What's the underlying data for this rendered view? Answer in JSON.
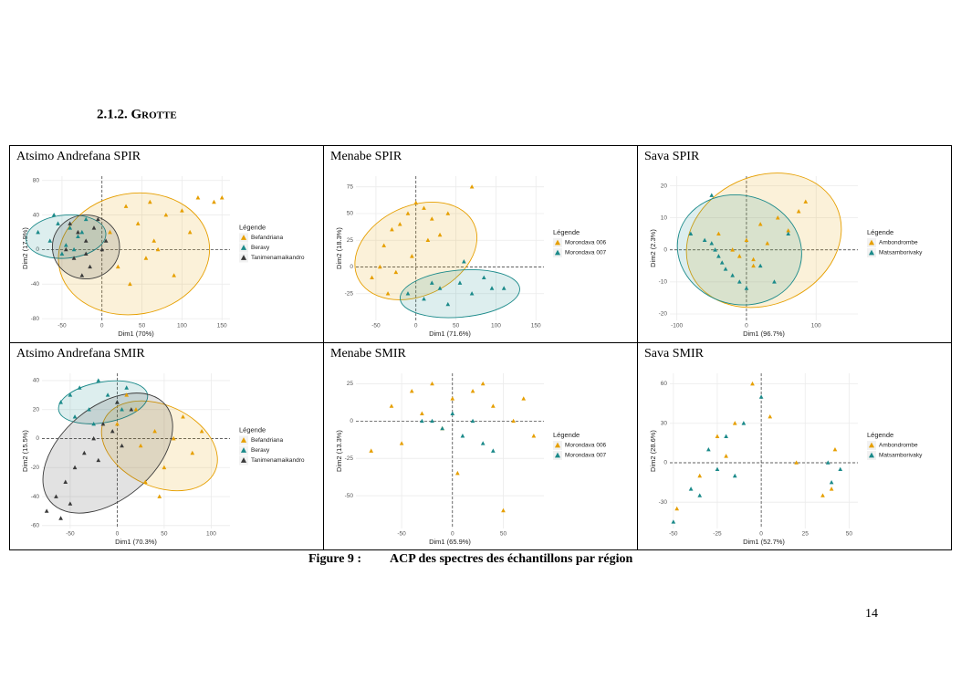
{
  "heading": "2.1.2. Grotte",
  "caption": {
    "label": "Figure 9 :",
    "text": "ACP des spectres des échantillons par région"
  },
  "page_number": "14",
  "chart_data": [
    {
      "type": "scatter",
      "title": "Atsimo Andrefana SPIR",
      "x_label": "Dim1 (70%)",
      "y_label": "Dim2 (17.9%)",
      "legend_title": "Légende",
      "grid": true,
      "xlim": [
        -75,
        160
      ],
      "xticks": [
        -50,
        0,
        50,
        100,
        150
      ],
      "ylim": [
        -82,
        85
      ],
      "yticks": [
        -80,
        -40,
        0,
        40,
        80
      ],
      "series": [
        {
          "name": "Befandriana",
          "color": "#e69f00",
          "x": [
            10,
            30,
            45,
            60,
            80,
            100,
            120,
            140,
            150,
            55,
            90,
            35,
            70,
            20,
            110,
            65
          ],
          "y": [
            20,
            50,
            30,
            55,
            40,
            45,
            60,
            55,
            60,
            -10,
            -30,
            -40,
            0,
            -20,
            20,
            10
          ],
          "ellipse": {
            "cx": 40,
            "cy": -5,
            "rx": 95,
            "ry": 70,
            "angle": -10
          }
        },
        {
          "name": "Beravy",
          "color": "#1b8a8a",
          "x": [
            -80,
            -65,
            -55,
            -45,
            -40,
            -30,
            -20,
            -50,
            -60,
            -35,
            -25
          ],
          "y": [
            20,
            10,
            30,
            5,
            25,
            15,
            35,
            -5,
            40,
            0,
            20
          ],
          "ellipse": {
            "cx": -45,
            "cy": 15,
            "rx": 50,
            "ry": 25,
            "angle": -5
          }
        },
        {
          "name": "Tanimenamaikandro",
          "color": "#3a3a3a",
          "x": [
            -40,
            -30,
            -20,
            -10,
            0,
            -35,
            -15,
            -5,
            -25,
            -45,
            5,
            -20
          ],
          "y": [
            30,
            20,
            10,
            25,
            0,
            -10,
            -20,
            35,
            -30,
            0,
            10,
            -5
          ],
          "ellipse": {
            "cx": -20,
            "cy": 3,
            "rx": 42,
            "ry": 37,
            "angle": 0
          }
        }
      ]
    },
    {
      "type": "scatter",
      "title": "Menabe SPIR",
      "x_label": "Dim1 (71.6%)",
      "y_label": "Dim2 (18.3%)",
      "legend_title": "Légende",
      "grid": true,
      "xlim": [
        -75,
        160
      ],
      "xticks": [
        -50,
        0,
        50,
        100,
        150
      ],
      "ylim": [
        -50,
        85
      ],
      "yticks": [
        -25,
        0,
        25,
        50,
        75
      ],
      "series": [
        {
          "name": "Morondava 006",
          "color": "#e69f00",
          "x": [
            -55,
            -40,
            -30,
            -20,
            -10,
            0,
            10,
            20,
            30,
            -45,
            -25,
            -5,
            15,
            40,
            70,
            -35
          ],
          "y": [
            -10,
            20,
            35,
            40,
            50,
            60,
            55,
            45,
            30,
            0,
            -5,
            10,
            25,
            50,
            75,
            -25
          ],
          "ellipse": {
            "cx": 0,
            "cy": 15,
            "rx": 80,
            "ry": 42,
            "angle": -25
          }
        },
        {
          "name": "Morondava 007",
          "color": "#1b8a8a",
          "x": [
            -10,
            10,
            30,
            40,
            55,
            70,
            85,
            95,
            110,
            60,
            20
          ],
          "y": [
            -25,
            -30,
            -20,
            -35,
            -15,
            -25,
            -10,
            -20,
            -20,
            5,
            -15
          ],
          "ellipse": {
            "cx": 55,
            "cy": -25,
            "rx": 75,
            "ry": 22,
            "angle": -5
          }
        }
      ]
    },
    {
      "type": "scatter",
      "title": "Sava SPIR",
      "x_label": "Dim1 (96.7%)",
      "y_label": "Dim2 (2.3%)",
      "legend_title": "Légende",
      "grid": true,
      "xlim": [
        -110,
        160
      ],
      "xticks": [
        -100,
        0,
        100
      ],
      "ylim": [
        -22,
        23
      ],
      "yticks": [
        -20,
        -10,
        0,
        10,
        20
      ],
      "series": [
        {
          "name": "Ambondrombe",
          "color": "#e69f00",
          "x": [
            -40,
            -20,
            0,
            10,
            20,
            30,
            45,
            60,
            75,
            85,
            10,
            -10
          ],
          "y": [
            5,
            0,
            3,
            -5,
            8,
            2,
            10,
            6,
            12,
            15,
            -3,
            -2
          ],
          "ellipse": {
            "cx": 25,
            "cy": 3,
            "rx": 115,
            "ry": 20,
            "angle": -25
          }
        },
        {
          "name": "Matsamborivaky",
          "color": "#1b8a8a",
          "x": [
            -80,
            -60,
            -50,
            -45,
            -40,
            -35,
            -30,
            -20,
            -10,
            0,
            20,
            40,
            60,
            -50
          ],
          "y": [
            5,
            3,
            2,
            0,
            -2,
            -4,
            -6,
            -8,
            -10,
            -12,
            -5,
            -10,
            5,
            17
          ],
          "ellipse": {
            "cx": -10,
            "cy": 0,
            "rx": 90,
            "ry": 17,
            "angle": 15
          }
        }
      ]
    },
    {
      "type": "scatter",
      "title": "Atsimo Andrefana SMIR",
      "x_label": "Dim1 (70.3%)",
      "y_label": "Dim2 (15.5%)",
      "legend_title": "Légende",
      "grid": true,
      "xlim": [
        -80,
        120
      ],
      "xticks": [
        -50,
        0,
        50,
        100
      ],
      "ylim": [
        -62,
        45
      ],
      "yticks": [
        -60,
        -40,
        -20,
        0,
        20,
        40
      ],
      "series": [
        {
          "name": "Befandriana",
          "color": "#e69f00",
          "x": [
            0,
            20,
            40,
            60,
            80,
            50,
            30,
            10,
            45,
            70,
            25,
            90
          ],
          "y": [
            10,
            20,
            5,
            0,
            -10,
            -20,
            -30,
            30,
            -40,
            15,
            -5,
            5
          ],
          "ellipse": {
            "cx": 45,
            "cy": -5,
            "rx": 65,
            "ry": 28,
            "angle": 25
          }
        },
        {
          "name": "Beravy",
          "color": "#1b8a8a",
          "x": [
            -60,
            -50,
            -40,
            -30,
            -20,
            -10,
            0,
            10,
            -45,
            -25,
            5
          ],
          "y": [
            25,
            30,
            35,
            20,
            40,
            30,
            25,
            35,
            15,
            10,
            20
          ],
          "ellipse": {
            "cx": -15,
            "cy": 25,
            "rx": 48,
            "ry": 14,
            "angle": -10
          }
        },
        {
          "name": "Tanimenamaikandro",
          "color": "#3a3a3a",
          "x": [
            -75,
            -65,
            -55,
            -45,
            -35,
            -25,
            -15,
            -5,
            5,
            15,
            -50,
            -20,
            0,
            -60
          ],
          "y": [
            -50,
            -40,
            -30,
            -20,
            -10,
            0,
            10,
            5,
            -5,
            20,
            -45,
            -15,
            25,
            -55
          ],
          "ellipse": {
            "cx": -10,
            "cy": -10,
            "rx": 80,
            "ry": 32,
            "angle": -40
          }
        }
      ]
    },
    {
      "type": "scatter",
      "title": "Menabe SMIR",
      "x_label": "Dim1 (65.9%)",
      "y_label": "Dim2 (13.3%)",
      "legend_title": "Légende",
      "grid": true,
      "xlim": [
        -95,
        90
      ],
      "xticks": [
        -50,
        0,
        50
      ],
      "ylim": [
        -72,
        32
      ],
      "yticks": [
        -50,
        -25,
        0,
        25
      ],
      "series": [
        {
          "name": "Morondava 006",
          "color": "#e69f00",
          "x": [
            -80,
            -60,
            -40,
            -20,
            0,
            20,
            40,
            60,
            80,
            -50,
            -10,
            30,
            70,
            5,
            -30,
            50
          ],
          "y": [
            -20,
            10,
            20,
            25,
            15,
            20,
            10,
            0,
            -10,
            -15,
            -5,
            25,
            15,
            -35,
            5,
            -60
          ]
        },
        {
          "name": "Morondava 007",
          "color": "#1b8a8a",
          "x": [
            -20,
            -10,
            0,
            10,
            20,
            30,
            40,
            -30
          ],
          "y": [
            0,
            -5,
            5,
            -10,
            0,
            -15,
            -20,
            0
          ]
        }
      ]
    },
    {
      "type": "scatter",
      "title": "Sava SMIR",
      "x_label": "Dim1 (52.7%)",
      "y_label": "Dim2 (28.6%)",
      "legend_title": "Légende",
      "grid": true,
      "xlim": [
        -52,
        55
      ],
      "xticks": [
        -50,
        -25,
        0,
        25,
        50
      ],
      "ylim": [
        -50,
        68
      ],
      "yticks": [
        -30,
        0,
        30,
        60
      ],
      "series": [
        {
          "name": "Ambondrombe",
          "color": "#e69f00",
          "x": [
            -48,
            -35,
            -25,
            -15,
            -5,
            5,
            20,
            40,
            42,
            35,
            -20
          ],
          "y": [
            -35,
            -10,
            20,
            30,
            60,
            35,
            0,
            -20,
            10,
            -25,
            5
          ]
        },
        {
          "name": "Matsamborivaky",
          "color": "#1b8a8a",
          "x": [
            -50,
            -40,
            -30,
            -20,
            -10,
            0,
            -25,
            -15,
            40,
            45,
            38,
            -35
          ],
          "y": [
            -45,
            -20,
            10,
            20,
            30,
            50,
            -5,
            -10,
            -15,
            -5,
            0,
            -25
          ]
        }
      ]
    }
  ]
}
